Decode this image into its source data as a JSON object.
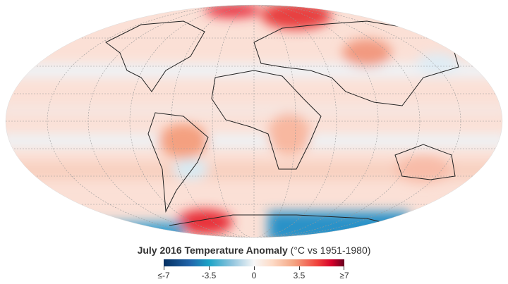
{
  "map": {
    "projection": "Mollweide",
    "title_bold": "July 2016 Temperature Anomaly",
    "title_units": "(°C vs 1951-1980)"
  },
  "legend": {
    "ticks": [
      "≤-7",
      "-3.5",
      "0",
      "3.5",
      "≥7"
    ],
    "values": [
      -7,
      -3.5,
      0,
      3.5,
      7
    ],
    "colors": {
      "cold": "#053061",
      "neutral": "#f7f7f7",
      "warm": "#67001f"
    }
  }
}
